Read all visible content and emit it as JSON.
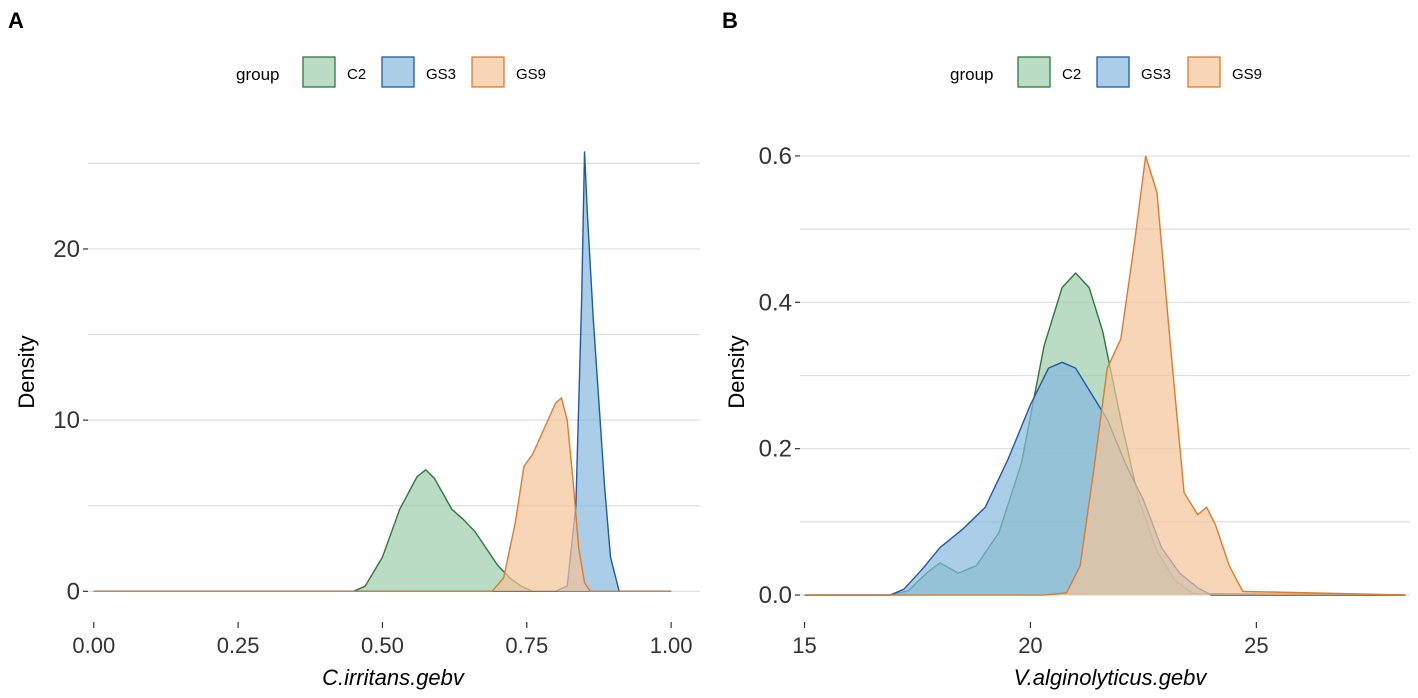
{
  "legend": {
    "title": "group"
  },
  "series_colors": {
    "C2": {
      "fill": "#9dccab",
      "stroke": "#2d7a3a"
    },
    "GS3": {
      "fill": "#86b8de",
      "stroke": "#1f5aa6"
    },
    "GS9": {
      "fill": "#f4c59a",
      "stroke": "#e07a2c"
    }
  },
  "chart_data": [
    {
      "panel": "A",
      "type": "area",
      "title": "",
      "xlabel": "C.irritans.gebv",
      "ylabel": "Density",
      "xlim": [
        -0.01,
        1.05
      ],
      "ylim": [
        -1.5,
        28
      ],
      "xticks": [
        0.0,
        0.25,
        0.5,
        0.75,
        1.0
      ],
      "xtick_labels": [
        "0.00",
        "0.25",
        "0.50",
        "0.75",
        "1.00"
      ],
      "yticks": [
        0,
        10,
        20
      ],
      "ytick_labels": [
        "0",
        "10",
        "20"
      ],
      "y_minor_grid": [
        5,
        15,
        25
      ],
      "legend_entries": [
        "C2",
        "GS3",
        "GS9"
      ],
      "series": [
        {
          "name": "C2",
          "x": [
            0.0,
            0.45,
            0.47,
            0.5,
            0.53,
            0.56,
            0.575,
            0.59,
            0.62,
            0.64,
            0.66,
            0.68,
            0.7,
            0.72,
            0.74,
            0.76,
            1.0
          ],
          "y": [
            0,
            0,
            0.3,
            2.0,
            4.8,
            6.7,
            7.1,
            6.6,
            4.8,
            4.2,
            3.5,
            2.5,
            1.5,
            0.8,
            0.3,
            0,
            0
          ]
        },
        {
          "name": "GS3",
          "x": [
            0.0,
            0.8,
            0.82,
            0.835,
            0.845,
            0.85,
            0.855,
            0.865,
            0.875,
            0.885,
            0.895,
            0.91,
            1.0
          ],
          "y": [
            0,
            0,
            0.3,
            5.0,
            17.0,
            25.7,
            22.0,
            16.0,
            11.0,
            6.0,
            2.0,
            0,
            0
          ]
        },
        {
          "name": "GS9",
          "x": [
            0.0,
            0.69,
            0.71,
            0.73,
            0.745,
            0.76,
            0.78,
            0.8,
            0.81,
            0.82,
            0.83,
            0.84,
            0.85,
            0.86,
            1.0
          ],
          "y": [
            0,
            0,
            0.8,
            4.0,
            7.3,
            8.0,
            9.5,
            11.0,
            11.3,
            10.0,
            6.5,
            2.5,
            0.5,
            0,
            0
          ]
        }
      ]
    },
    {
      "panel": "B",
      "type": "area",
      "title": "",
      "xlabel": "V.alginolyticus.gebv",
      "ylabel": "Density",
      "xlim": [
        14.9,
        28.4
      ],
      "ylim": [
        -0.03,
        0.66
      ],
      "xticks": [
        15,
        20,
        25
      ],
      "xtick_labels": [
        "15",
        "20",
        "25"
      ],
      "yticks": [
        0.0,
        0.2,
        0.4,
        0.6
      ],
      "ytick_labels": [
        "0.0",
        "0.2",
        "0.4",
        "0.6"
      ],
      "y_minor_grid": [
        0.1,
        0.3,
        0.5
      ],
      "legend_entries": [
        "C2",
        "GS3",
        "GS9"
      ],
      "series": [
        {
          "name": "C2",
          "x": [
            15.0,
            16.9,
            17.3,
            17.7,
            18.0,
            18.4,
            18.8,
            19.3,
            19.8,
            20.3,
            20.7,
            21.0,
            21.3,
            21.6,
            22.0,
            22.4,
            22.8,
            23.2,
            23.6,
            28.3
          ],
          "y": [
            0,
            0,
            0.006,
            0.03,
            0.044,
            0.03,
            0.04,
            0.085,
            0.18,
            0.34,
            0.42,
            0.44,
            0.42,
            0.36,
            0.24,
            0.13,
            0.06,
            0.02,
            0.002,
            0
          ]
        },
        {
          "name": "GS3",
          "x": [
            15.0,
            16.9,
            17.2,
            17.6,
            18.0,
            18.5,
            19.0,
            19.5,
            20.0,
            20.4,
            20.7,
            21.0,
            21.3,
            21.7,
            22.1,
            22.5,
            22.9,
            23.3,
            23.7,
            24.0,
            28.3
          ],
          "y": [
            0,
            0,
            0.008,
            0.035,
            0.065,
            0.09,
            0.12,
            0.185,
            0.26,
            0.31,
            0.318,
            0.31,
            0.28,
            0.24,
            0.18,
            0.13,
            0.065,
            0.03,
            0.01,
            0,
            0
          ]
        },
        {
          "name": "GS9",
          "x": [
            15.0,
            20.3,
            20.8,
            21.1,
            21.4,
            21.7,
            22.0,
            22.3,
            22.55,
            22.8,
            23.1,
            23.4,
            23.7,
            23.9,
            24.1,
            24.4,
            24.7,
            28.3
          ],
          "y": [
            0,
            0,
            0.003,
            0.04,
            0.17,
            0.31,
            0.35,
            0.48,
            0.6,
            0.55,
            0.34,
            0.14,
            0.11,
            0.12,
            0.095,
            0.04,
            0.005,
            0
          ]
        }
      ]
    }
  ]
}
